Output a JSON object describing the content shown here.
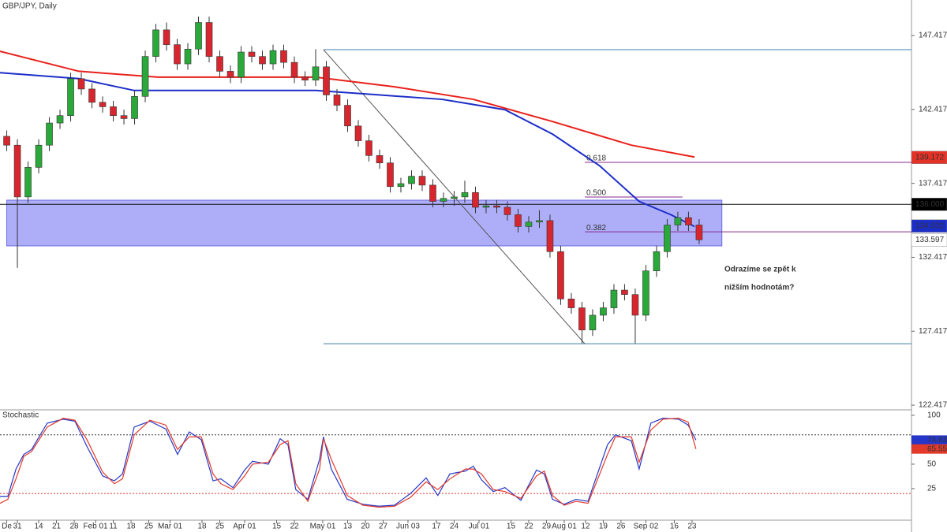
{
  "chart_data": [
    {
      "type": "candlestick",
      "title": "GBP/JPY, Daily",
      "x": [
        -3,
        0,
        3,
        6,
        9,
        12,
        15,
        18,
        21,
        24,
        27,
        30,
        33,
        36,
        39,
        42,
        45,
        48,
        51,
        54,
        57,
        60,
        63,
        66,
        69,
        72,
        75,
        78,
        81,
        84,
        87,
        90,
        93,
        96,
        99,
        102,
        105,
        108,
        111,
        114,
        117,
        120,
        123,
        126,
        129,
        132,
        135,
        138,
        141,
        144,
        147,
        150,
        153,
        156,
        159,
        162,
        165,
        168,
        171,
        174,
        177,
        180,
        183,
        186,
        189,
        192
      ],
      "open": [
        140.6,
        140.0,
        136.5,
        138.5,
        140.0,
        141.5,
        142.0,
        144.5,
        143.8,
        142.9,
        142.6,
        142.0,
        141.8,
        143.3,
        146.0,
        147.8,
        146.8,
        145.5,
        146.5,
        148.3,
        146.0,
        145.0,
        144.6,
        146.3,
        146.0,
        145.5,
        146.4,
        145.6,
        144.6,
        144.4,
        145.3,
        143.4,
        142.7,
        141.3,
        140.3,
        139.3,
        138.8,
        137.2,
        137.4,
        137.9,
        137.3,
        136.2,
        136.4,
        136.5,
        136.8,
        135.8,
        135.9,
        135.8,
        135.3,
        134.5,
        134.8,
        134.9,
        132.8,
        129.6,
        129.0,
        127.5,
        128.5,
        129.0,
        130.2,
        129.9,
        128.5,
        131.5,
        132.8,
        134.6,
        135.1,
        134.6
      ],
      "high": [
        141.0,
        140.4,
        138.9,
        140.4,
        141.9,
        142.4,
        144.9,
        144.9,
        144.2,
        143.3,
        143.0,
        142.4,
        143.7,
        146.4,
        148.2,
        148.3,
        147.2,
        146.9,
        148.7,
        148.7,
        146.4,
        145.4,
        146.7,
        146.7,
        146.4,
        146.8,
        146.8,
        146.0,
        145.0,
        146.5,
        145.7,
        143.8,
        143.1,
        141.7,
        140.7,
        139.7,
        139.2,
        137.8,
        138.3,
        138.3,
        137.7,
        136.8,
        136.9,
        137.6,
        137.2,
        136.3,
        136.3,
        136.2,
        135.7,
        135.2,
        135.6,
        135.3,
        133.2,
        130.0,
        129.4,
        128.9,
        129.4,
        130.6,
        130.6,
        130.3,
        131.9,
        133.2,
        135.0,
        135.5,
        135.5,
        135.0
      ],
      "low": [
        139.6,
        131.7,
        136.1,
        138.1,
        139.6,
        141.1,
        141.6,
        143.4,
        142.5,
        142.2,
        141.6,
        141.4,
        141.4,
        142.9,
        145.6,
        146.4,
        145.1,
        145.1,
        146.1,
        145.6,
        144.6,
        144.2,
        144.2,
        145.6,
        145.1,
        145.1,
        145.2,
        144.2,
        144.0,
        144.0,
        143.0,
        142.3,
        140.9,
        139.9,
        138.9,
        138.4,
        136.8,
        136.8,
        137.0,
        136.9,
        135.8,
        135.8,
        135.9,
        136.1,
        135.4,
        135.4,
        135.4,
        134.9,
        134.1,
        134.1,
        134.4,
        132.4,
        129.2,
        128.6,
        126.6,
        127.1,
        128.1,
        128.6,
        129.5,
        126.6,
        128.1,
        131.1,
        132.4,
        134.2,
        134.2,
        133.3
      ],
      "close": [
        140.0,
        136.5,
        138.5,
        140.0,
        141.5,
        142.0,
        144.5,
        143.8,
        142.9,
        142.6,
        142.0,
        141.8,
        143.3,
        146.0,
        147.8,
        146.8,
        145.5,
        146.5,
        148.3,
        146.0,
        145.0,
        144.6,
        146.3,
        146.0,
        145.5,
        146.4,
        145.6,
        144.6,
        144.4,
        145.3,
        143.4,
        142.7,
        141.3,
        140.3,
        139.3,
        138.8,
        137.2,
        137.4,
        137.9,
        137.3,
        136.2,
        136.4,
        136.5,
        136.8,
        135.8,
        135.9,
        135.8,
        135.3,
        134.5,
        134.8,
        134.9,
        132.8,
        129.6,
        129.0,
        127.5,
        128.5,
        129.0,
        130.2,
        129.9,
        128.5,
        131.5,
        132.8,
        134.6,
        135.1,
        134.6,
        133.6
      ],
      "up_color": "#2aa83a",
      "down_color": "#d8262e",
      "xlim": [
        -4.9,
        251.8
      ],
      "ylim": [
        122.1,
        149.82
      ],
      "yticks": [
        147.417,
        142.417,
        137.417,
        132.417,
        127.417,
        122.417
      ],
      "lines": [
        {
          "color": "#e8211b",
          "x": [
            -4.9,
            17.3,
            39.6,
            61.8,
            84,
            106.2,
            128.4,
            150.7,
            172.9,
            190.7
          ],
          "values": [
            146.35,
            145.0,
            144.6,
            144.6,
            144.6,
            143.95,
            143.1,
            141.6,
            140.0,
            139.2
          ]
        },
        {
          "color": "#1c2ec8",
          "x": [
            -4.9,
            17.3,
            32.9,
            50.7,
            61.8,
            84,
            101.8,
            119.6,
            137.3,
            150.7,
            164,
            175.1,
            184,
            190.7
          ],
          "values": [
            144.9,
            144.5,
            143.7,
            143.7,
            143.7,
            143.7,
            143.4,
            143.1,
            142.4,
            140.75,
            138.6,
            136.2,
            135.3,
            134.5
          ]
        }
      ],
      "zone": {
        "low": 133.19,
        "high": 136.28,
        "x": [
          -3,
          198.4
        ],
        "color": "#8c8cf5"
      },
      "trendline": {
        "x": [
          86.2,
          159.8
        ],
        "values": [
          146.46,
          126.57
        ],
        "color": "#555"
      },
      "hlines": [
        {
          "value": 146.46,
          "x": [
            86.2,
            251.8
          ],
          "color": "#3f7fa8"
        },
        {
          "value": 126.57,
          "x": [
            86.2,
            251.8
          ],
          "color": "#3f7fa8"
        },
        {
          "value": 136.0,
          "x": [
            -4.9,
            251.8
          ],
          "color": "#111"
        }
      ],
      "fib": [
        {
          "value": 138.84,
          "label": "0.618",
          "x": [
            159.8,
            251.8
          ]
        },
        {
          "value": 136.49,
          "label": "0.500",
          "x": [
            159.8,
            187.3
          ]
        },
        {
          "value": 134.14,
          "label": "0.382",
          "x": [
            159.8,
            251.8
          ]
        }
      ],
      "fib_color": "#8a2a8a",
      "price_labels": [
        {
          "value": 139.172,
          "bg": "#e53227"
        },
        {
          "value": 136.0,
          "label": "136.000",
          "bg": "#000"
        },
        {
          "value": 134.532,
          "bg": "#1c2ec8"
        },
        {
          "value": 133.597,
          "bg": "#fff"
        }
      ],
      "annotation": [
        "Odrazíme se zpět k",
        "nižším hodnotám?"
      ]
    },
    {
      "type": "line",
      "title": "Stochastic",
      "x": [
        -4.9,
        -2.7,
        -0.4,
        1.8,
        4,
        8.4,
        12.9,
        16.2,
        19.6,
        24,
        27.3,
        29.6,
        32.9,
        37.3,
        41.8,
        45.1,
        48.4,
        51.8,
        55.1,
        57.3,
        60.7,
        64,
        66.2,
        70.7,
        74,
        76.2,
        78.4,
        81.8,
        85.1,
        86.2,
        88.4,
        92.9,
        97.3,
        101.8,
        106.2,
        110.7,
        115.1,
        118.4,
        121.8,
        126.2,
        128.4,
        130.7,
        134,
        137.3,
        141.8,
        146.2,
        148.4,
        150.7,
        154,
        157.3,
        160.7,
        166.2,
        168.4,
        172.9,
        175.1,
        178.4,
        181.8,
        186.2,
        188.9,
        191.1
      ],
      "series": [
        {
          "color": "#2536c8",
          "values": [
            17,
            17,
            45,
            60,
            65,
            92,
            96,
            94,
            68,
            38,
            33,
            40,
            88,
            94,
            86,
            60,
            83,
            75,
            33,
            35,
            26,
            44,
            53,
            50,
            76,
            70,
            24,
            14,
            55,
            78,
            45,
            14,
            9,
            7,
            8,
            20,
            36,
            18,
            40,
            43,
            48,
            34,
            22,
            26,
            13,
            44,
            40,
            14,
            9,
            14,
            12,
            70,
            80,
            74,
            45,
            92,
            97,
            96,
            90,
            74.63
          ]
        },
        {
          "color": "#e23a2a",
          "values": [
            10,
            14,
            35,
            58,
            63,
            88,
            97,
            95,
            75,
            42,
            30,
            35,
            80,
            95,
            90,
            65,
            78,
            78,
            40,
            30,
            24,
            38,
            50,
            52,
            70,
            74,
            30,
            12,
            45,
            76,
            55,
            18,
            8,
            6,
            7,
            16,
            32,
            24,
            35,
            45,
            45,
            40,
            24,
            22,
            15,
            38,
            43,
            18,
            8,
            12,
            10,
            60,
            78,
            78,
            52,
            85,
            96,
            97,
            93,
            65.55
          ]
        }
      ],
      "xlim": [
        -4.9,
        251.8
      ],
      "ylim": [
        -7.3,
        105.6
      ],
      "yticks": [
        100,
        75,
        50,
        25
      ],
      "levels": [
        {
          "value": 80,
          "color": "#333"
        },
        {
          "value": 20,
          "color": "#e03030"
        }
      ],
      "last_labels": [
        {
          "value": 74.63,
          "bg": "#2536c8"
        },
        {
          "value": 65.55,
          "bg": "#e23a2a"
        }
      ],
      "xticks": [
        {
          "value": -3,
          "label": "De"
        },
        {
          "value": 0,
          "label": "31"
        },
        {
          "value": 6,
          "label": "14"
        },
        {
          "value": 11,
          "label": "21"
        },
        {
          "value": 16,
          "label": "28"
        },
        {
          "value": 22,
          "label": "Feb 01"
        },
        {
          "value": 27,
          "label": "11"
        },
        {
          "value": 32,
          "label": "18"
        },
        {
          "value": 37,
          "label": "25"
        },
        {
          "value": 43,
          "label": "Mar 01"
        },
        {
          "value": 52,
          "label": "18"
        },
        {
          "value": 57,
          "label": "25"
        },
        {
          "value": 64,
          "label": "Apr 01"
        },
        {
          "value": 73,
          "label": "15"
        },
        {
          "value": 78,
          "label": "22"
        },
        {
          "value": 86,
          "label": "May 01"
        },
        {
          "value": 93,
          "label": "13"
        },
        {
          "value": 98,
          "label": "20"
        },
        {
          "value": 103,
          "label": "27"
        },
        {
          "value": 110,
          "label": "Jun 03"
        },
        {
          "value": 118,
          "label": "17"
        },
        {
          "value": 123,
          "label": "24"
        },
        {
          "value": 130,
          "label": "Jul 01"
        },
        {
          "value": 139,
          "label": "15"
        },
        {
          "value": 144,
          "label": "22"
        },
        {
          "value": 149,
          "label": "29"
        },
        {
          "value": 154,
          "label": "Aug 01"
        },
        {
          "value": 160,
          "label": "12"
        },
        {
          "value": 165,
          "label": "19"
        },
        {
          "value": 170,
          "label": "26"
        },
        {
          "value": 177,
          "label": "Sep 02"
        },
        {
          "value": 185,
          "label": "16"
        },
        {
          "value": 190,
          "label": "23"
        }
      ]
    }
  ]
}
